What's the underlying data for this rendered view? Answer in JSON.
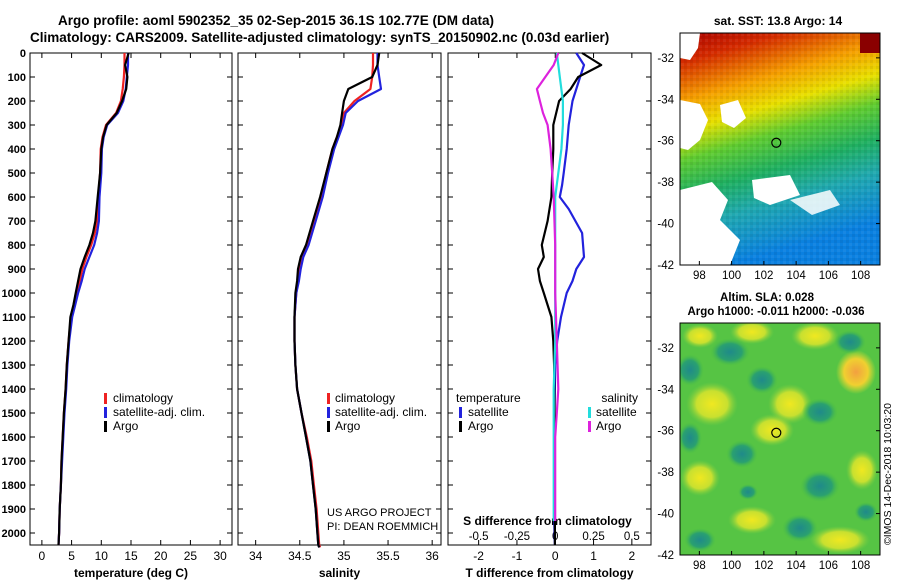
{
  "header": {
    "title_line1": "Argo profile: aoml 5902352_35 02-Sep-2015 36.1S 102.77E (DM data)",
    "title_line2": "Climatology: CARS2009. Satellite-adjusted climatology: synTS_20150902.nc (0.03d earlier)"
  },
  "credits": {
    "project": "US ARGO PROJECT",
    "pi": "PI: DEAN ROEMMICH",
    "imos": "©IMOS 14-Dec-2018 10:03:20"
  },
  "colors": {
    "climatology": "#ee2222",
    "satellite": "#2222dd",
    "argo": "#000000",
    "sal_satellite": "#22dddd",
    "sal_argo": "#dd22dd"
  },
  "chart_data": [
    {
      "type": "line",
      "id": "temperature",
      "title": "",
      "xlabel": "temperature (deg C)",
      "ylabel": "",
      "xlim": [
        -2,
        32
      ],
      "ylim": [
        2050,
        0
      ],
      "xticks": [
        0,
        5,
        10,
        15,
        20,
        25,
        30
      ],
      "yticks": [
        0,
        100,
        200,
        300,
        400,
        500,
        600,
        700,
        800,
        900,
        1000,
        1100,
        1200,
        1300,
        1400,
        1500,
        1600,
        1700,
        1800,
        1900,
        2000
      ],
      "legend": [
        "climatology",
        "satellite-adj. clim.",
        "Argo"
      ],
      "legend_position": "lower-right",
      "series": [
        {
          "name": "climatology",
          "x": [
            13.9,
            13.9,
            13.8,
            13.6,
            13.3,
            12.5,
            10.8,
            10.2,
            9.9,
            9.8,
            9.5,
            9.3,
            8.9,
            8.3,
            7.5,
            6.8,
            6.4,
            5.8,
            5.4,
            4.9,
            4.5,
            4.2,
            4.0,
            3.7,
            3.5,
            3.3,
            3.2,
            3.0,
            2.9,
            2.8
          ],
          "y": [
            0,
            50,
            100,
            150,
            200,
            250,
            300,
            350,
            400,
            500,
            600,
            700,
            750,
            800,
            850,
            900,
            950,
            1000,
            1050,
            1100,
            1200,
            1300,
            1400,
            1500,
            1600,
            1700,
            1800,
            1900,
            2000,
            2050
          ]
        },
        {
          "name": "satellite-adj. clim.",
          "x": [
            14.5,
            14.5,
            14.3,
            14.1,
            13.7,
            12.8,
            11.0,
            10.4,
            10.1,
            10.0,
            9.7,
            9.6,
            9.3,
            8.8,
            8.0,
            7.2,
            6.7,
            6.1,
            5.6,
            5.1,
            4.6,
            4.3,
            4.1,
            3.8,
            3.6,
            3.4,
            3.2,
            3.0,
            2.9,
            2.8
          ],
          "y": [
            0,
            50,
            100,
            150,
            200,
            250,
            300,
            350,
            400,
            500,
            600,
            700,
            750,
            800,
            850,
            900,
            950,
            1000,
            1050,
            1100,
            1200,
            1300,
            1400,
            1500,
            1600,
            1700,
            1800,
            1900,
            2000,
            2050
          ]
        },
        {
          "name": "Argo",
          "x": [
            14.6,
            14.0,
            14.4,
            14.2,
            13.5,
            12.6,
            10.9,
            10.3,
            10.0,
            9.8,
            9.4,
            9.0,
            8.6,
            8.0,
            7.2,
            6.5,
            6.1,
            5.7,
            5.3,
            4.8,
            4.5,
            4.2,
            4.0,
            3.7,
            3.5,
            3.3,
            3.2,
            3.0,
            2.9,
            2.8
          ],
          "y": [
            0,
            50,
            100,
            150,
            200,
            250,
            300,
            350,
            400,
            500,
            600,
            700,
            750,
            800,
            850,
            900,
            950,
            1000,
            1050,
            1100,
            1200,
            1300,
            1400,
            1500,
            1600,
            1700,
            1800,
            1900,
            2000,
            2050
          ]
        }
      ]
    },
    {
      "type": "line",
      "id": "salinity",
      "title": "",
      "xlabel": "salinity",
      "ylabel": "",
      "xlim": [
        33.8,
        36.1
      ],
      "ylim": [
        2050,
        0
      ],
      "xticks": [
        34,
        34.5,
        35,
        35.5,
        36
      ],
      "legend": [
        "climatology",
        "satellite-adj. clim.",
        "Argo"
      ],
      "legend_position": "lower-right",
      "series": [
        {
          "name": "climatology",
          "x": [
            35.33,
            35.33,
            35.32,
            35.3,
            35.12,
            35.0,
            34.97,
            34.92,
            34.87,
            34.8,
            34.74,
            34.66,
            34.58,
            34.52,
            34.49,
            34.48,
            34.46,
            34.44,
            34.44,
            34.45,
            34.47,
            34.52,
            34.58,
            34.63,
            34.66,
            34.69,
            34.71,
            34.72,
            34.73
          ],
          "y": [
            0,
            50,
            100,
            150,
            200,
            250,
            300,
            350,
            400,
            500,
            600,
            700,
            800,
            850,
            900,
            950,
            1000,
            1100,
            1200,
            1300,
            1400,
            1500,
            1600,
            1700,
            1800,
            1900,
            2000,
            2050,
            2060
          ]
        },
        {
          "name": "satellite-adj. clim.",
          "x": [
            35.38,
            35.38,
            35.4,
            35.42,
            35.16,
            35.02,
            34.99,
            34.94,
            34.89,
            34.82,
            34.76,
            34.68,
            34.6,
            34.54,
            34.51,
            34.49,
            34.46,
            34.44,
            34.44,
            34.45,
            34.47,
            34.52,
            34.57,
            34.62,
            34.65,
            34.68,
            34.7,
            34.71,
            34.72
          ],
          "y": [
            0,
            50,
            100,
            150,
            200,
            250,
            300,
            350,
            400,
            500,
            600,
            700,
            800,
            850,
            900,
            950,
            1000,
            1100,
            1200,
            1300,
            1400,
            1500,
            1600,
            1700,
            1800,
            1900,
            2000,
            2050,
            2060
          ]
        },
        {
          "name": "Argo",
          "x": [
            35.4,
            35.38,
            35.32,
            35.05,
            35.0,
            34.98,
            34.96,
            34.92,
            34.87,
            34.8,
            34.73,
            34.65,
            34.57,
            34.51,
            34.48,
            34.47,
            34.45,
            34.44,
            34.44,
            34.45,
            34.47,
            34.52,
            34.57,
            34.62,
            34.65,
            34.68,
            34.7,
            34.71,
            34.72
          ],
          "y": [
            0,
            50,
            100,
            150,
            200,
            250,
            300,
            350,
            400,
            500,
            600,
            700,
            800,
            850,
            900,
            950,
            1000,
            1100,
            1200,
            1300,
            1400,
            1500,
            1600,
            1700,
            1800,
            1900,
            2000,
            2050,
            2060
          ]
        }
      ]
    },
    {
      "type": "line",
      "id": "difference",
      "title": "",
      "xlabel": "T difference from climatology",
      "xlabel_top": "S difference from climatology",
      "ylabel": "",
      "xlim": [
        -2.8,
        2.5
      ],
      "ylim": [
        2050,
        0
      ],
      "xticks": [
        -2,
        -1,
        0,
        1,
        2
      ],
      "xticks_top_labels": [
        "-0.5",
        "-0.25",
        "0",
        "0.25",
        "0.5"
      ],
      "xticks_top_values": [
        -0.5,
        -0.25,
        0,
        0.25,
        0.5
      ],
      "legend_temperature_title": "temperature",
      "legend_salinity_title": "salinity",
      "legend_temperature": [
        "satellite",
        "Argo"
      ],
      "legend_salinity": [
        "satellite",
        "Argo"
      ],
      "series": [
        {
          "name": "T satellite",
          "x": [
            0.55,
            0.75,
            0.65,
            0.55,
            0.45,
            0.35,
            0.3,
            0.22,
            0.18,
            0.12,
            0.35,
            0.7,
            0.75,
            0.55,
            0.45,
            0.3,
            0.15,
            0.05,
            0.0,
            -0.02,
            -0.03,
            -0.03,
            -0.02,
            -0.01
          ],
          "y": [
            0,
            50,
            100,
            150,
            200,
            300,
            400,
            500,
            550,
            600,
            650,
            750,
            850,
            900,
            950,
            1000,
            1100,
            1200,
            1300,
            1500,
            1700,
            1900,
            2000,
            2050
          ]
        },
        {
          "name": "T Argo",
          "x": [
            0.7,
            1.2,
            0.6,
            0.4,
            0.1,
            -0.05,
            -0.05,
            -0.08,
            -0.1,
            -0.2,
            -0.35,
            -0.3,
            -0.45,
            -0.4,
            -0.3,
            -0.1,
            -0.05,
            -0.03,
            -0.02,
            -0.02,
            -0.01,
            -0.01
          ],
          "y": [
            0,
            50,
            100,
            150,
            200,
            300,
            400,
            500,
            600,
            700,
            800,
            850,
            900,
            950,
            1000,
            1100,
            1200,
            1300,
            1500,
            1700,
            1900,
            2050
          ]
        },
        {
          "name": "S satellite",
          "x": [
            0.01,
            0.03,
            0.05,
            0.05,
            0.04,
            0.02,
            0.0,
            0.0,
            0.0,
            0.0,
            0.0,
            0.0,
            -0.01,
            -0.01,
            -0.01,
            -0.01
          ],
          "y": [
            0,
            100,
            200,
            300,
            400,
            500,
            600,
            700,
            800,
            900,
            1000,
            1200,
            1400,
            1600,
            1800,
            1950
          ]
        },
        {
          "name": "S Argo",
          "x": [
            0.02,
            -0.01,
            -0.12,
            -0.1,
            -0.08,
            -0.05,
            -0.03,
            -0.02,
            -0.01,
            0.0,
            0.0,
            0.01,
            0.02,
            0.01,
            0.0,
            0.0,
            0.0
          ],
          "y": [
            0,
            50,
            150,
            200,
            250,
            300,
            400,
            500,
            600,
            800,
            1000,
            1200,
            1400,
            1500,
            1600,
            1800,
            1950
          ]
        }
      ]
    },
    {
      "type": "heatmap",
      "id": "sst_map",
      "title": "sat. SST: 13.8 Argo: 14",
      "xticks": [
        98,
        100,
        102,
        104,
        106,
        108
      ],
      "yticks": [
        -32,
        -34,
        -36,
        -38,
        -40,
        -42
      ],
      "xlim": [
        96.8,
        109.2
      ],
      "ylim": [
        -42,
        -30.8
      ],
      "marker": {
        "lon": 102.77,
        "lat": -36.1
      }
    },
    {
      "type": "heatmap",
      "id": "sla_map",
      "title": "Altim. SLA: 0.028",
      "subtitle": "Argo h1000: -0.011 h2000: -0.036",
      "xticks": [
        98,
        100,
        102,
        104,
        106,
        108
      ],
      "yticks": [
        -32,
        -34,
        -36,
        -38,
        -40,
        -42
      ],
      "xlim": [
        96.8,
        109.2
      ],
      "ylim": [
        -42,
        -30.8
      ],
      "marker": {
        "lon": 102.77,
        "lat": -36.1
      }
    }
  ]
}
